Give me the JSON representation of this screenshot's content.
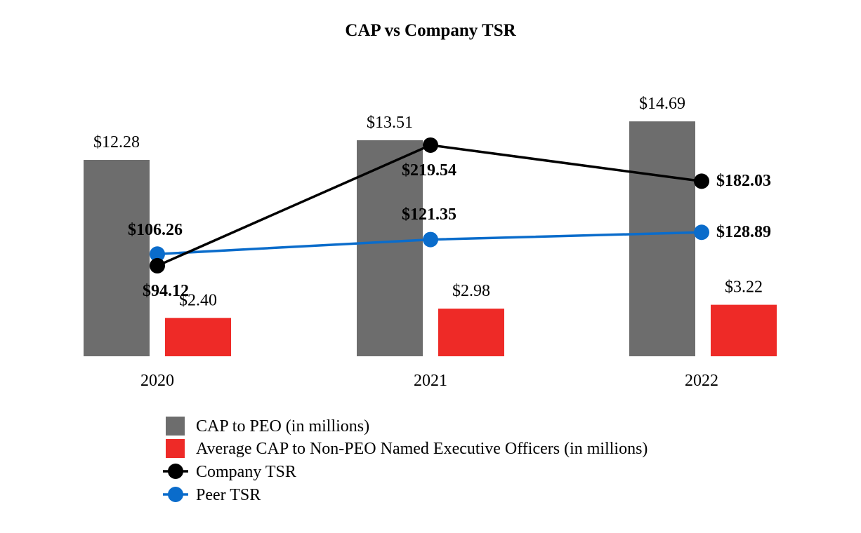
{
  "chart_data": {
    "type": "bar",
    "title": "CAP vs Company TSR",
    "categories": [
      "2020",
      "2021",
      "2022"
    ],
    "series": [
      {
        "name": "CAP to PEO (in millions)",
        "kind": "bar",
        "axis": "primary",
        "color": "#6d6d6d",
        "values": [
          12.28,
          13.51,
          14.69
        ],
        "labels": [
          "$12.28",
          "$13.51",
          "$14.69"
        ]
      },
      {
        "name": "Average CAP to Non-PEO Named Executive Officers (in millions)",
        "kind": "bar",
        "axis": "primary",
        "color": "#ee2a27",
        "values": [
          2.4,
          2.98,
          3.22
        ],
        "labels": [
          "$2.40",
          "$2.98",
          "$3.22"
        ]
      },
      {
        "name": "Company TSR",
        "kind": "line",
        "axis": "secondary",
        "color": "#000000",
        "values": [
          94.12,
          219.54,
          182.03
        ],
        "labels": [
          "$94.12",
          "$219.54",
          "$182.03"
        ]
      },
      {
        "name": "Peer TSR",
        "kind": "line",
        "axis": "secondary",
        "color": "#0a6ccb",
        "values": [
          106.26,
          121.35,
          128.89
        ],
        "labels": [
          "$106.26",
          "$121.35",
          "$128.89"
        ]
      }
    ],
    "grid": false,
    "axes_visible": false,
    "legend_position": "bottom"
  }
}
